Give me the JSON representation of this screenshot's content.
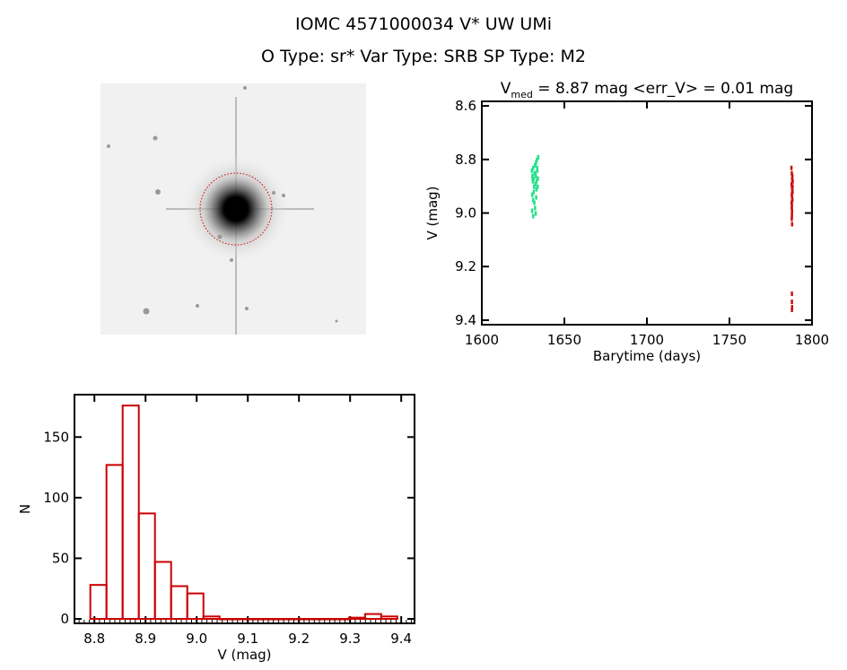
{
  "header": {
    "title_line1": "IOMC 4571000034    V* UW UMi",
    "title_line2": "O Type: sr*  Var Type: SRB  SP Type: M2"
  },
  "colors": {
    "hist": "#cc0000",
    "green": "#22e08a",
    "red": "#cc1111",
    "axis": "#000000"
  },
  "chart_data": [
    {
      "type": "scatter",
      "title": {
        "prefix": "V",
        "sub": "med",
        "suffix": " = 8.87 mag <err_V> = 0.01 mag"
      },
      "xlabel": "Barytime (days)",
      "ylabel": "V (mag)",
      "xlim": [
        1600,
        1800
      ],
      "ylim": [
        8.583,
        9.417
      ],
      "y_inverted": true,
      "xticks": [
        "1600",
        "1650",
        "1700",
        "1750",
        "1800"
      ],
      "yticks": [
        "8.6",
        "8.8",
        "9.0",
        "9.2",
        "9.4"
      ],
      "series": [
        {
          "name": "green",
          "color": "#22e08a",
          "x": [
            1630.2,
            1630.5,
            1630.8,
            1631.0,
            1631.2,
            1631.5,
            1631.8,
            1632.0,
            1632.3,
            1632.6,
            1632.9,
            1633.2,
            1633.5,
            1633.8,
            1634.0,
            1630.4,
            1630.9,
            1631.3,
            1631.7,
            1632.1,
            1632.5,
            1632.8,
            1633.0,
            1633.4,
            1633.7,
            1630.3,
            1631.0,
            1630.6,
            1632.2,
            1632.7
          ],
          "y": [
            8.84,
            8.86,
            8.88,
            8.83,
            8.87,
            8.9,
            8.85,
            8.82,
            8.89,
            8.86,
            8.91,
            8.8,
            8.84,
            8.87,
            8.79,
            8.93,
            8.95,
            8.92,
            8.96,
            8.98,
            9.0,
            8.94,
            8.88,
            8.83,
            8.9,
            8.99,
            9.01,
            8.87,
            8.85,
            8.81
          ]
        },
        {
          "name": "red",
          "color": "#cc1111",
          "x": [
            1787.4,
            1787.6,
            1787.8,
            1788.0,
            1788.2,
            1787.5,
            1787.7,
            1787.9,
            1788.1,
            1787.6,
            1787.8,
            1788.0,
            1787.5,
            1787.7,
            1787.9,
            1788.1,
            1787.6,
            1787.8,
            1787.7,
            1787.6,
            1787.8,
            1787.7,
            1787.7,
            1787.7,
            1787.8,
            1787.7
          ],
          "y": [
            8.83,
            8.85,
            8.87,
            8.86,
            8.88,
            8.89,
            8.9,
            8.91,
            8.92,
            8.93,
            8.94,
            8.95,
            8.96,
            8.97,
            8.92,
            8.9,
            8.98,
            8.99,
            9.0,
            9.02,
            9.04,
            9.01,
            9.3,
            9.33,
            9.35,
            9.36
          ]
        }
      ]
    },
    {
      "type": "bar",
      "xlabel": "V (mag)",
      "ylabel": "N",
      "xlim": [
        8.761,
        9.426
      ],
      "ylim": [
        -3.7,
        185
      ],
      "xticks": [
        "8.8",
        "8.9",
        "9.0",
        "9.1",
        "9.2",
        "9.3",
        "9.4"
      ],
      "yticks": [
        "0",
        "50",
        "100",
        "150"
      ],
      "bin_start": 8.792,
      "bin_width": 0.0316,
      "values": [
        28,
        127,
        176,
        87,
        47,
        27,
        21,
        2,
        0,
        0,
        0,
        0,
        0,
        0,
        0,
        0,
        1,
        4,
        2
      ]
    }
  ]
}
